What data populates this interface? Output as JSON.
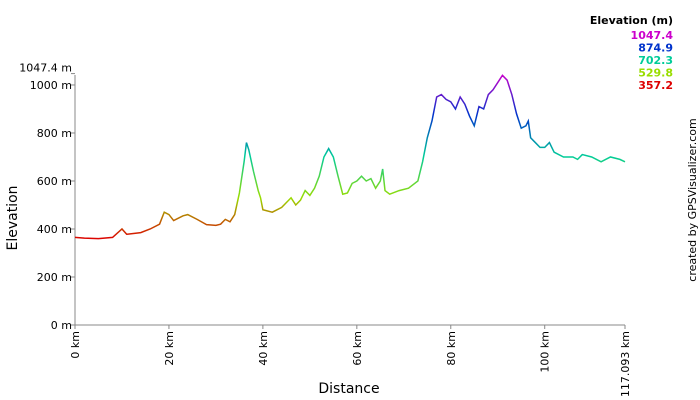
{
  "chart_data": {
    "type": "line",
    "x_label": "Distance",
    "y_label": "Elevation",
    "side_note": "created by GPSVisualizer.com",
    "legend": {
      "title": "Elevation (m)",
      "values": [
        1047.4,
        874.9,
        702.3,
        529.8,
        357.2
      ],
      "colors": [
        "#cc00cc",
        "#0033cc",
        "#00cc99",
        "#99dd00",
        "#dd0000"
      ]
    },
    "xlim": [
      0,
      117.093
    ],
    "xticks": [
      {
        "value": 0,
        "label": "0 km"
      },
      {
        "value": 20,
        "label": "20 km"
      },
      {
        "value": 40,
        "label": "40 km"
      },
      {
        "value": 60,
        "label": "60 km"
      },
      {
        "value": 80,
        "label": "80 km"
      },
      {
        "value": 100,
        "label": "100 km"
      },
      {
        "value": 117.093,
        "label": "117.093 km"
      }
    ],
    "ylim": [
      0,
      1047.4
    ],
    "yticks": [
      {
        "value": 0,
        "label": "0 m"
      },
      {
        "value": 200,
        "label": "200 m"
      },
      {
        "value": 400,
        "label": "400 m"
      },
      {
        "value": 600,
        "label": "600 m"
      },
      {
        "value": 800,
        "label": "800 m"
      },
      {
        "value": 1000,
        "label": "1000 m"
      },
      {
        "value": 1047.4,
        "label": "1047.4 m"
      }
    ],
    "grid": false,
    "series": [
      {
        "name": "Elevation",
        "x": [
          0,
          2,
          5,
          8,
          10,
          11,
          14,
          16,
          18,
          19,
          20,
          21,
          23,
          24,
          26,
          28,
          30,
          31,
          32,
          33,
          34,
          35,
          36,
          36.5,
          37,
          38,
          39,
          39.5,
          40,
          42,
          44,
          46,
          47,
          48,
          49,
          50,
          51,
          52,
          53,
          54,
          55,
          56,
          57,
          58,
          59,
          60,
          61,
          62,
          63,
          64,
          65,
          65.5,
          66,
          67,
          69,
          71,
          73,
          74,
          75,
          76,
          77,
          78,
          79,
          80,
          81,
          82,
          83,
          84,
          85,
          86,
          87,
          88,
          89,
          90,
          91,
          92,
          93,
          94,
          95,
          96,
          96.5,
          97,
          98,
          99,
          100,
          101,
          102,
          104,
          106,
          107,
          108,
          110,
          112,
          114,
          116,
          117.093
        ],
        "values": [
          365,
          362,
          360,
          365,
          400,
          378,
          385,
          400,
          420,
          470,
          460,
          435,
          455,
          460,
          440,
          418,
          415,
          420,
          440,
          430,
          460,
          550,
          680,
          760,
          730,
          640,
          560,
          530,
          480,
          470,
          490,
          530,
          500,
          520,
          560,
          540,
          570,
          620,
          700,
          735,
          700,
          620,
          545,
          550,
          590,
          600,
          620,
          600,
          610,
          570,
          600,
          650,
          560,
          545,
          560,
          570,
          600,
          680,
          780,
          850,
          950,
          960,
          940,
          930,
          900,
          950,
          920,
          870,
          830,
          910,
          900,
          960,
          980,
          1010,
          1040,
          1020,
          960,
          880,
          820,
          830,
          850,
          780,
          760,
          740,
          740,
          760,
          720,
          700,
          700,
          690,
          710,
          700,
          680,
          700,
          690,
          680
        ]
      }
    ]
  }
}
